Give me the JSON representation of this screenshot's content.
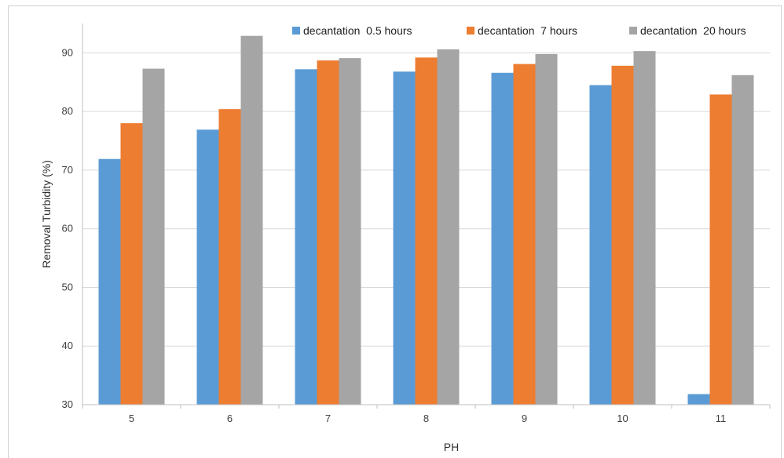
{
  "chart_data": {
    "type": "bar",
    "categories": [
      "5",
      "6",
      "7",
      "8",
      "9",
      "10",
      "11"
    ],
    "series": [
      {
        "name": "decantation  0.5 hours",
        "color": "#5b9bd5",
        "values": [
          71.9,
          76.9,
          87.2,
          86.8,
          86.6,
          84.5,
          31.8
        ]
      },
      {
        "name": "decantation  7 hours",
        "color": "#ed7d31",
        "values": [
          78.0,
          80.4,
          88.7,
          89.2,
          88.1,
          87.8,
          82.9
        ]
      },
      {
        "name": "decantation  20 hours",
        "color": "#a5a5a5",
        "values": [
          87.3,
          92.9,
          89.1,
          90.6,
          89.8,
          90.3,
          86.2
        ]
      }
    ],
    "xlabel": "PH",
    "ylabel": "Removal  Turbidity (%)",
    "ylim": [
      30,
      95
    ],
    "yticks": [
      30,
      40,
      50,
      60,
      70,
      80,
      90
    ],
    "grid": true,
    "legend_position": "top-right"
  }
}
